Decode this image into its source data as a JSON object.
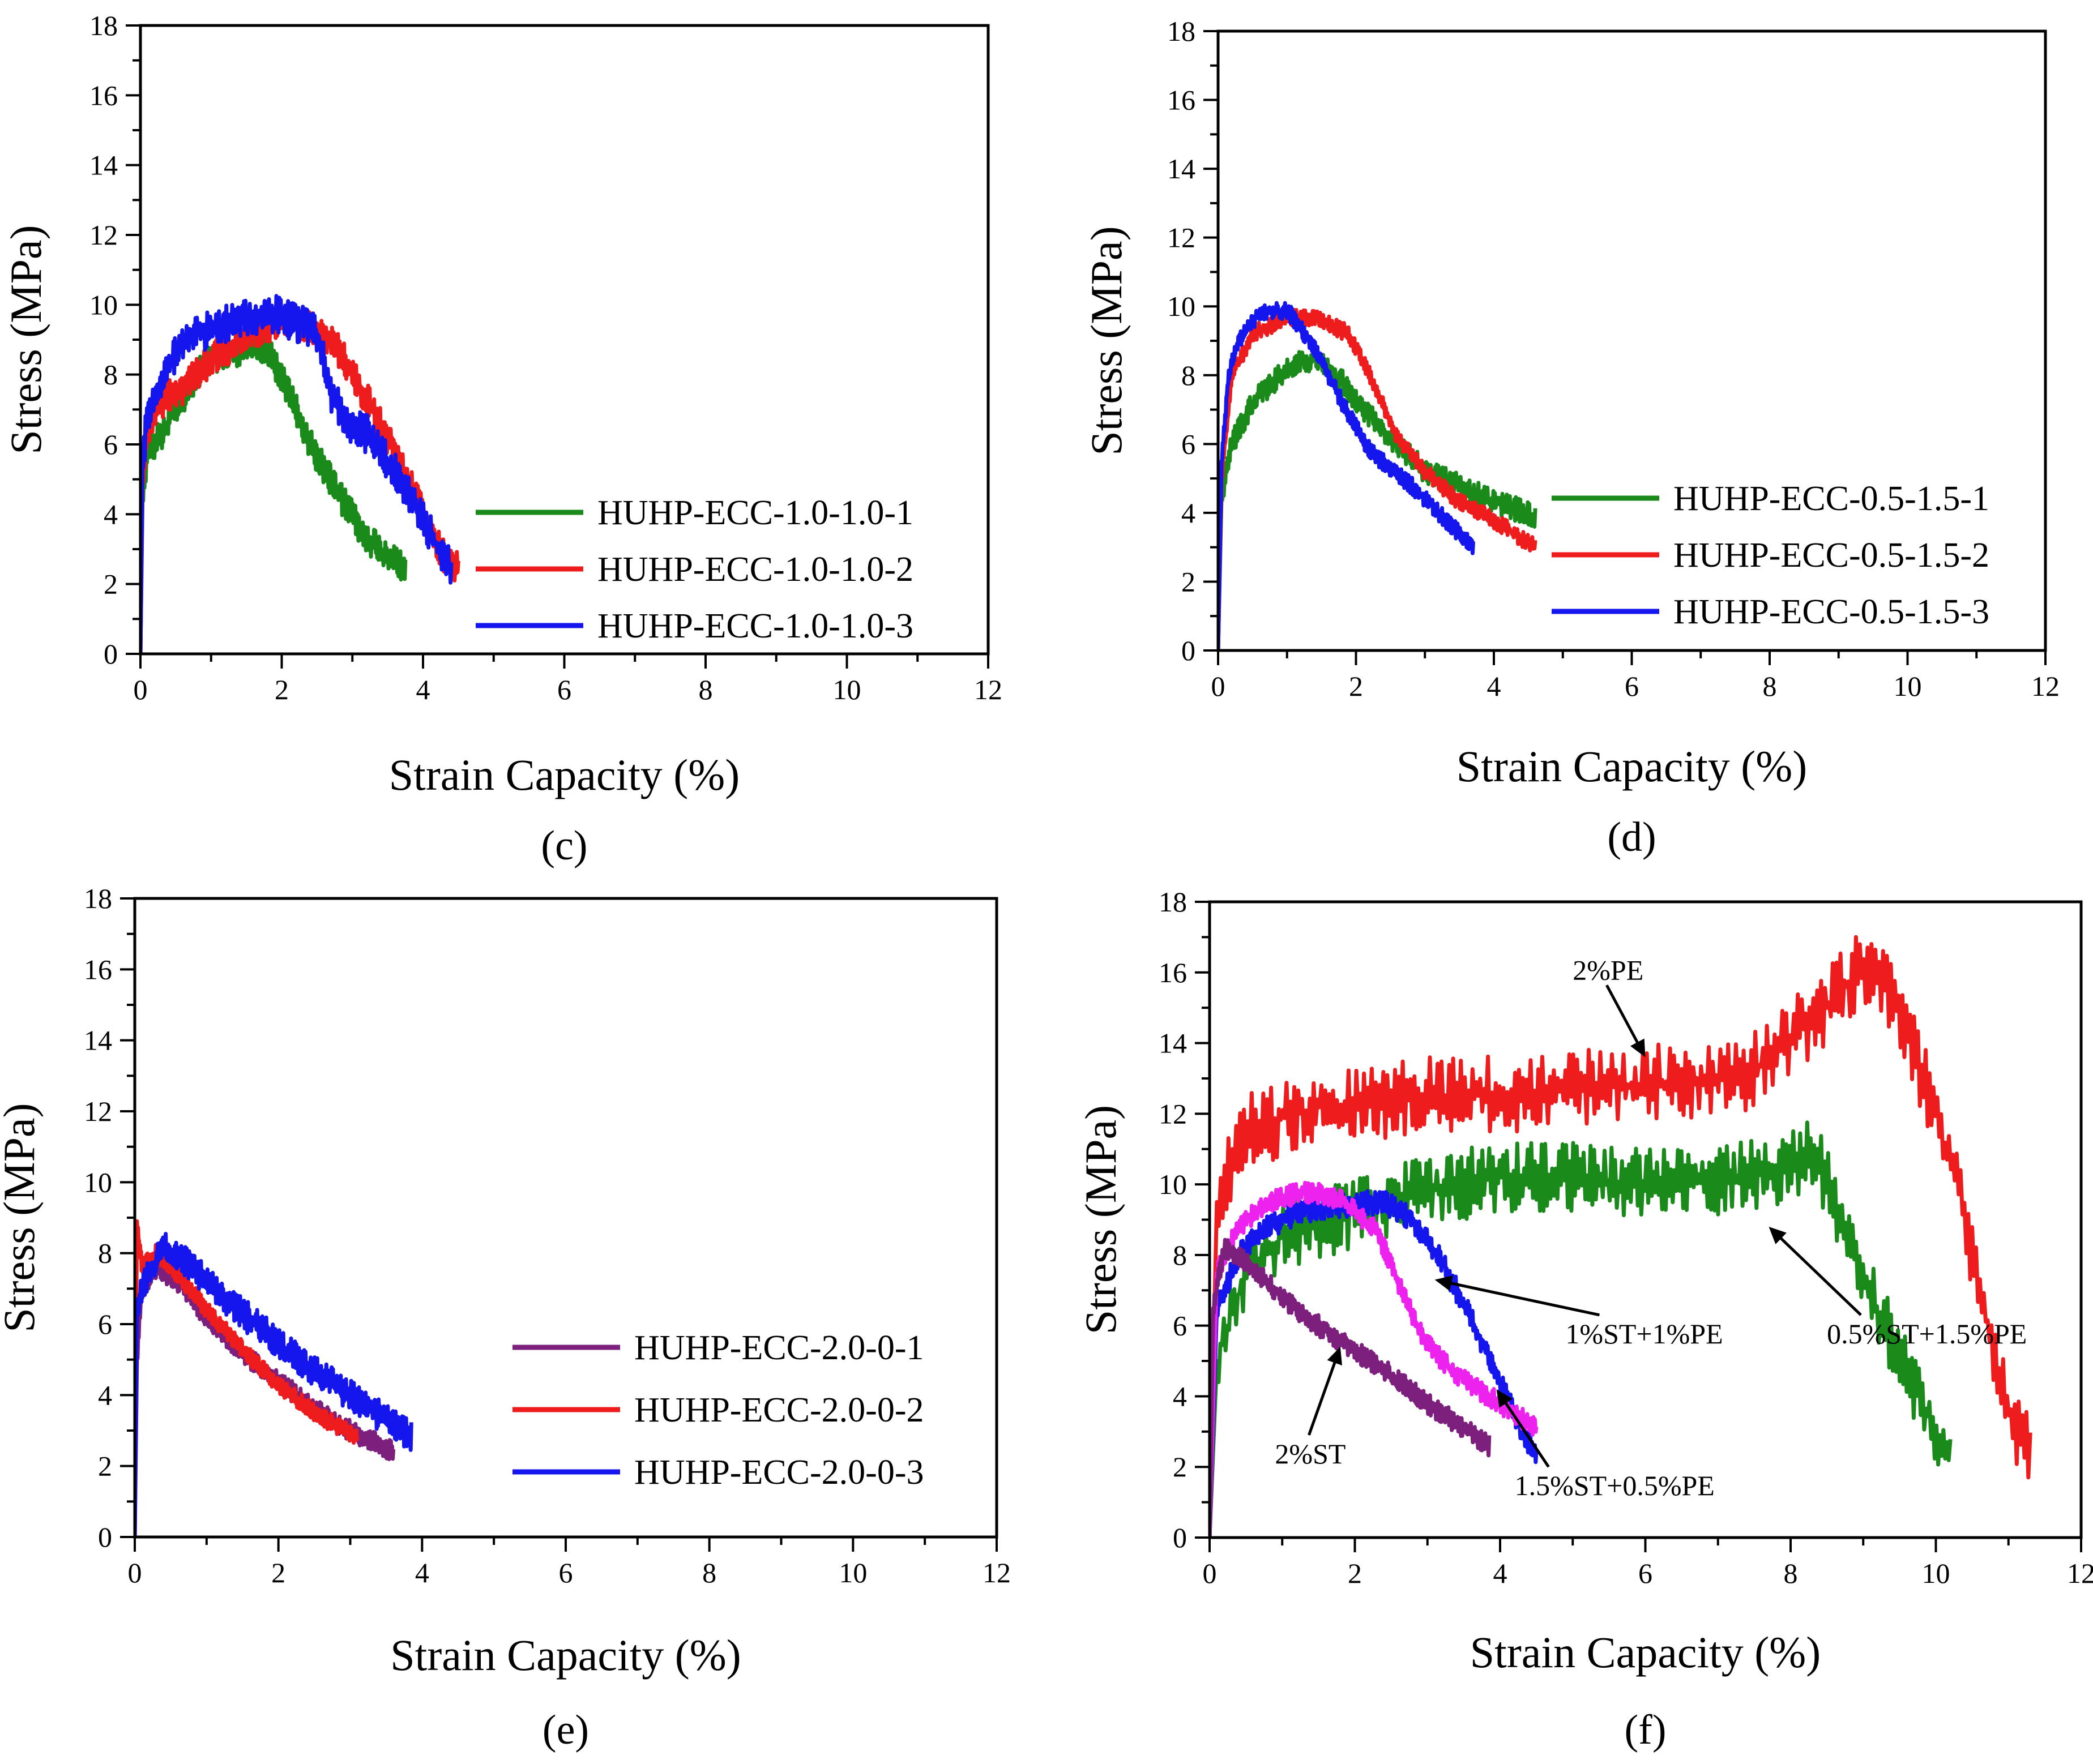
{
  "chart_data": [
    {
      "id": "c",
      "type": "line",
      "panel_label": "(c)",
      "xlabel": "Strain Capacity (%)",
      "ylabel": "Stress (MPa)",
      "xlim": [
        0,
        12
      ],
      "ylim": [
        0,
        18
      ],
      "xticks": [
        "0",
        "2",
        "4",
        "6",
        "8",
        "10",
        "12"
      ],
      "yticks": [
        "0",
        "2",
        "4",
        "6",
        "8",
        "10",
        "12",
        "14",
        "16",
        "18"
      ],
      "legend_position": "center-right",
      "series": [
        {
          "name": "HUHP-ECC-1.0-1.0-1",
          "color": "#1a8a1a",
          "noise": 0.45,
          "points": [
            [
              0,
              0
            ],
            [
              0.03,
              4.5
            ],
            [
              0.1,
              5.8
            ],
            [
              0.3,
              6.3
            ],
            [
              0.5,
              7.0
            ],
            [
              0.8,
              8.0
            ],
            [
              1.0,
              8.4
            ],
            [
              1.3,
              8.6
            ],
            [
              1.6,
              8.9
            ],
            [
              1.8,
              8.7
            ],
            [
              2.1,
              7.5
            ],
            [
              2.4,
              6.0
            ],
            [
              2.8,
              4.6
            ],
            [
              3.2,
              3.3
            ],
            [
              3.5,
              2.8
            ],
            [
              3.75,
              2.4
            ]
          ]
        },
        {
          "name": "HUHP-ECC-1.0-1.0-2",
          "color": "#ee1c1c",
          "noise": 0.5,
          "points": [
            [
              0,
              0
            ],
            [
              0.03,
              5.0
            ],
            [
              0.1,
              6.5
            ],
            [
              0.3,
              7.2
            ],
            [
              0.6,
              7.6
            ],
            [
              1.0,
              8.4
            ],
            [
              1.5,
              9.2
            ],
            [
              2.0,
              9.5
            ],
            [
              2.5,
              9.3
            ],
            [
              2.8,
              8.7
            ],
            [
              3.2,
              7.3
            ],
            [
              3.6,
              5.8
            ],
            [
              4.0,
              4.0
            ],
            [
              4.3,
              2.8
            ],
            [
              4.5,
              2.4
            ]
          ]
        },
        {
          "name": "HUHP-ECC-1.0-1.0-3",
          "color": "#1515ee",
          "noise": 0.55,
          "points": [
            [
              0,
              0
            ],
            [
              0.03,
              5.5
            ],
            [
              0.1,
              6.8
            ],
            [
              0.3,
              7.8
            ],
            [
              0.6,
              9.0
            ],
            [
              1.0,
              9.3
            ],
            [
              1.5,
              9.6
            ],
            [
              1.8,
              9.8
            ],
            [
              2.2,
              9.5
            ],
            [
              2.5,
              9.2
            ],
            [
              2.7,
              7.5
            ],
            [
              2.9,
              6.6
            ],
            [
              3.3,
              6.2
            ],
            [
              3.6,
              5.2
            ],
            [
              4.0,
              3.8
            ],
            [
              4.4,
              2.4
            ]
          ]
        }
      ]
    },
    {
      "id": "d",
      "type": "line",
      "panel_label": "(d)",
      "xlabel": "Strain Capacity (%)",
      "ylabel": "Stress (MPa)",
      "xlim": [
        0,
        12
      ],
      "ylim": [
        0,
        18
      ],
      "xticks": [
        "0",
        "2",
        "4",
        "6",
        "8",
        "10",
        "12"
      ],
      "yticks": [
        "0",
        "2",
        "4",
        "6",
        "8",
        "10",
        "12",
        "14",
        "16",
        "18"
      ],
      "legend_position": "center-right",
      "series": [
        {
          "name": "HUHP-ECC-0.5-1.5-1",
          "color": "#1a8a1a",
          "noise": 0.35,
          "points": [
            [
              0,
              0
            ],
            [
              0.05,
              4.5
            ],
            [
              0.2,
              6.0
            ],
            [
              0.5,
              7.2
            ],
            [
              1.0,
              8.2
            ],
            [
              1.4,
              8.5
            ],
            [
              1.8,
              7.8
            ],
            [
              2.2,
              6.8
            ],
            [
              2.6,
              6.0
            ],
            [
              3.0,
              5.2
            ],
            [
              3.5,
              4.8
            ],
            [
              4.0,
              4.3
            ],
            [
              4.5,
              4.0
            ],
            [
              4.6,
              3.8
            ]
          ]
        },
        {
          "name": "HUHP-ECC-0.5-1.5-2",
          "color": "#ee1c1c",
          "noise": 0.25,
          "points": [
            [
              0,
              0
            ],
            [
              0.05,
              5.0
            ],
            [
              0.2,
              8.0
            ],
            [
              0.5,
              9.2
            ],
            [
              1.0,
              9.7
            ],
            [
              1.5,
              9.6
            ],
            [
              1.9,
              9.2
            ],
            [
              2.2,
              8.0
            ],
            [
              2.6,
              6.2
            ],
            [
              3.0,
              5.2
            ],
            [
              3.5,
              4.3
            ],
            [
              4.0,
              3.8
            ],
            [
              4.6,
              3.0
            ]
          ]
        },
        {
          "name": "HUHP-ECC-0.5-1.5-3",
          "color": "#1515ee",
          "noise": 0.25,
          "points": [
            [
              0,
              0
            ],
            [
              0.05,
              5.5
            ],
            [
              0.15,
              8.0
            ],
            [
              0.3,
              9.0
            ],
            [
              0.6,
              9.8
            ],
            [
              1.0,
              9.9
            ],
            [
              1.4,
              8.8
            ],
            [
              1.8,
              7.2
            ],
            [
              2.2,
              5.8
            ],
            [
              2.8,
              4.8
            ],
            [
              3.3,
              3.8
            ],
            [
              3.7,
              3.0
            ]
          ]
        }
      ]
    },
    {
      "id": "e",
      "type": "line",
      "panel_label": "(e)",
      "xlabel": "Strain Capacity (%)",
      "ylabel": "Stress (MPa)",
      "xlim": [
        0,
        12
      ],
      "ylim": [
        0,
        18
      ],
      "xticks": [
        "0",
        "2",
        "4",
        "6",
        "8",
        "10",
        "12"
      ],
      "yticks": [
        "0",
        "2",
        "4",
        "6",
        "8",
        "10",
        "12",
        "14",
        "16",
        "18"
      ],
      "legend_position": "bottom-right",
      "series": [
        {
          "name": "HUHP-ECC-2.0-0-1",
          "color": "#7d1f7d",
          "noise": 0.3,
          "points": [
            [
              0,
              0
            ],
            [
              0.03,
              5.0
            ],
            [
              0.1,
              7.0
            ],
            [
              0.3,
              7.6
            ],
            [
              0.6,
              7.2
            ],
            [
              1.0,
              6.2
            ],
            [
              1.5,
              5.2
            ],
            [
              2.0,
              4.4
            ],
            [
              2.5,
              3.6
            ],
            [
              3.0,
              3.0
            ],
            [
              3.6,
              2.4
            ]
          ]
        },
        {
          "name": "HUHP-ECC-2.0-0-2",
          "color": "#ee1c1c",
          "noise": 0.25,
          "points": [
            [
              0,
              0
            ],
            [
              0.03,
              8.9
            ],
            [
              0.1,
              7.6
            ],
            [
              0.3,
              8.0
            ],
            [
              0.6,
              7.4
            ],
            [
              1.0,
              6.4
            ],
            [
              1.5,
              5.3
            ],
            [
              2.0,
              4.3
            ],
            [
              2.5,
              3.5
            ],
            [
              3.1,
              2.8
            ]
          ]
        },
        {
          "name": "HUHP-ECC-2.0-0-3",
          "color": "#1515ee",
          "noise": 0.45,
          "points": [
            [
              0,
              0
            ],
            [
              0.03,
              6.5
            ],
            [
              0.1,
              7.0
            ],
            [
              0.4,
              8.2
            ],
            [
              0.8,
              7.6
            ],
            [
              1.2,
              6.8
            ],
            [
              1.8,
              5.8
            ],
            [
              2.4,
              4.8
            ],
            [
              3.0,
              4.0
            ],
            [
              3.5,
              3.3
            ],
            [
              3.85,
              2.8
            ]
          ]
        }
      ]
    },
    {
      "id": "f",
      "type": "line",
      "panel_label": "(f)",
      "xlabel": "Strain Capacity (%)",
      "ylabel": "Stress (MPa)",
      "xlim": [
        0,
        12
      ],
      "ylim": [
        0,
        18
      ],
      "xticks": [
        "0",
        "2",
        "4",
        "6",
        "8",
        "10",
        "12"
      ],
      "yticks": [
        "0",
        "2",
        "4",
        "6",
        "8",
        "10",
        "12",
        "14",
        "16",
        "18"
      ],
      "series": [
        {
          "name": "2%PE",
          "color": "#ee1c1c",
          "noise": 1.1,
          "points": [
            [
              0,
              0
            ],
            [
              0.1,
              9.5
            ],
            [
              0.5,
              11.5
            ],
            [
              1.5,
              12.2
            ],
            [
              3.0,
              12.5
            ],
            [
              4.5,
              12.6
            ],
            [
              5.5,
              12.8
            ],
            [
              6.5,
              12.9
            ],
            [
              7.5,
              13.2
            ],
            [
              8.5,
              15.0
            ],
            [
              9.0,
              16.2
            ],
            [
              9.3,
              15.8
            ],
            [
              9.8,
              13.2
            ],
            [
              10.3,
              10.0
            ],
            [
              10.7,
              6.0
            ],
            [
              11.0,
              3.5
            ],
            [
              11.3,
              2.4
            ]
          ]
        },
        {
          "name": "0.5%ST+1.5%PE",
          "color": "#1a8a1a",
          "noise": 1.0,
          "points": [
            [
              0,
              0
            ],
            [
              0.1,
              5.0
            ],
            [
              0.5,
              7.5
            ],
            [
              1.0,
              8.5
            ],
            [
              2.0,
              9.2
            ],
            [
              3.0,
              9.8
            ],
            [
              4.0,
              10.2
            ],
            [
              5.0,
              10.2
            ],
            [
              6.0,
              10.0
            ],
            [
              7.0,
              10.1
            ],
            [
              8.0,
              10.5
            ],
            [
              8.3,
              11.0
            ],
            [
              8.6,
              9.5
            ],
            [
              9.0,
              7.2
            ],
            [
              9.5,
              5.2
            ],
            [
              10.0,
              3.0
            ],
            [
              10.2,
              2.4
            ]
          ]
        },
        {
          "name": "1%ST+1%PE",
          "color": "#1515ee",
          "noise": 0.35,
          "points": [
            [
              0,
              0
            ],
            [
              0.1,
              6.5
            ],
            [
              0.4,
              8.0
            ],
            [
              0.8,
              8.8
            ],
            [
              1.2,
              9.2
            ],
            [
              1.8,
              9.4
            ],
            [
              2.4,
              9.5
            ],
            [
              2.8,
              9.0
            ],
            [
              3.2,
              7.8
            ],
            [
              3.6,
              6.2
            ],
            [
              4.0,
              4.4
            ],
            [
              4.3,
              3.0
            ],
            [
              4.5,
              2.4
            ]
          ]
        },
        {
          "name": "1.5%ST+0.5%PE",
          "color": "#ee22ee",
          "noise": 0.3,
          "points": [
            [
              0,
              0
            ],
            [
              0.1,
              7.5
            ],
            [
              0.4,
              8.8
            ],
            [
              0.8,
              9.5
            ],
            [
              1.3,
              9.8
            ],
            [
              1.8,
              9.6
            ],
            [
              2.3,
              8.7
            ],
            [
              2.6,
              7.2
            ],
            [
              2.9,
              5.8
            ],
            [
              3.2,
              5.0
            ],
            [
              3.6,
              4.3
            ],
            [
              4.0,
              3.8
            ],
            [
              4.5,
              3.1
            ]
          ]
        },
        {
          "name": "2%ST",
          "color": "#7d1f7d",
          "noise": 0.3,
          "points": [
            [
              0,
              0
            ],
            [
              0.05,
              6.5
            ],
            [
              0.2,
              8.2
            ],
            [
              0.5,
              7.8
            ],
            [
              1.0,
              6.8
            ],
            [
              1.5,
              6.0
            ],
            [
              2.0,
              5.3
            ],
            [
              2.5,
              4.6
            ],
            [
              3.0,
              3.8
            ],
            [
              3.5,
              3.1
            ],
            [
              3.85,
              2.6
            ]
          ]
        }
      ],
      "annotations": [
        {
          "text": "2%PE",
          "target": [
            6.0,
            13.6
          ],
          "label_at": [
            5.0,
            15.8
          ]
        },
        {
          "text": "1%ST+1%PE",
          "target": [
            3.1,
            7.3
          ],
          "label_at": [
            4.9,
            5.5
          ]
        },
        {
          "text": "0.5%ST+1.5%PE",
          "target": [
            7.7,
            8.8
          ],
          "label_at": [
            8.5,
            5.5
          ]
        },
        {
          "text": "2%ST",
          "target": [
            1.8,
            5.4
          ],
          "label_at": [
            0.9,
            2.1
          ]
        },
        {
          "text": "1.5%ST+0.5%PE",
          "target": [
            3.95,
            4.2
          ],
          "label_at": [
            4.2,
            1.2
          ]
        }
      ]
    }
  ]
}
